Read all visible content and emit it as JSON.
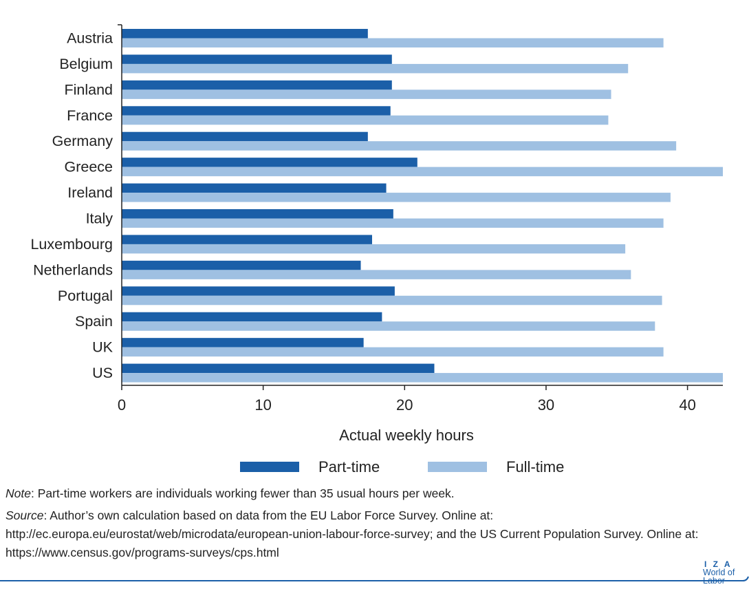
{
  "chart_data": {
    "type": "bar",
    "orientation": "horizontal",
    "categories": [
      "Austria",
      "Belgium",
      "Finland",
      "France",
      "Germany",
      "Greece",
      "Ireland",
      "Italy",
      "Luxembourg",
      "Netherlands",
      "Portugal",
      "Spain",
      "UK",
      "US"
    ],
    "series": [
      {
        "name": "Part-time",
        "color": "#1b5fa8",
        "values": [
          17.4,
          19.1,
          19.1,
          19.0,
          17.4,
          20.9,
          18.7,
          19.2,
          17.7,
          16.9,
          19.3,
          18.4,
          17.1,
          22.1
        ]
      },
      {
        "name": "Full-time",
        "color": "#9fc0e2",
        "values": [
          38.3,
          35.8,
          34.6,
          34.4,
          39.2,
          42.5,
          38.8,
          38.3,
          35.6,
          36.0,
          38.2,
          37.7,
          38.3,
          42.5
        ]
      }
    ],
    "xlabel": "Actual weekly hours",
    "xlim": [
      0,
      42.5
    ],
    "xticks": [
      0,
      10,
      20,
      30,
      40
    ],
    "grid": false,
    "legend": "bottom"
  },
  "notes": {
    "note_label": "Note",
    "note_text": ": Part-time workers are individuals working fewer than 35 usual hours per week.",
    "source_label": "Source",
    "source_text": ": Author’s own calculation based on data from the EU Labor Force Survey. Online at: http://ec.europa.eu/eurostat/web/microdata/european-union-labour-force-survey; and the US Current Population Survey. Online at: https://www.census.gov/programs-surveys/cps.html"
  },
  "logo": {
    "line1": "I Z A",
    "line2": "World of Labor"
  }
}
